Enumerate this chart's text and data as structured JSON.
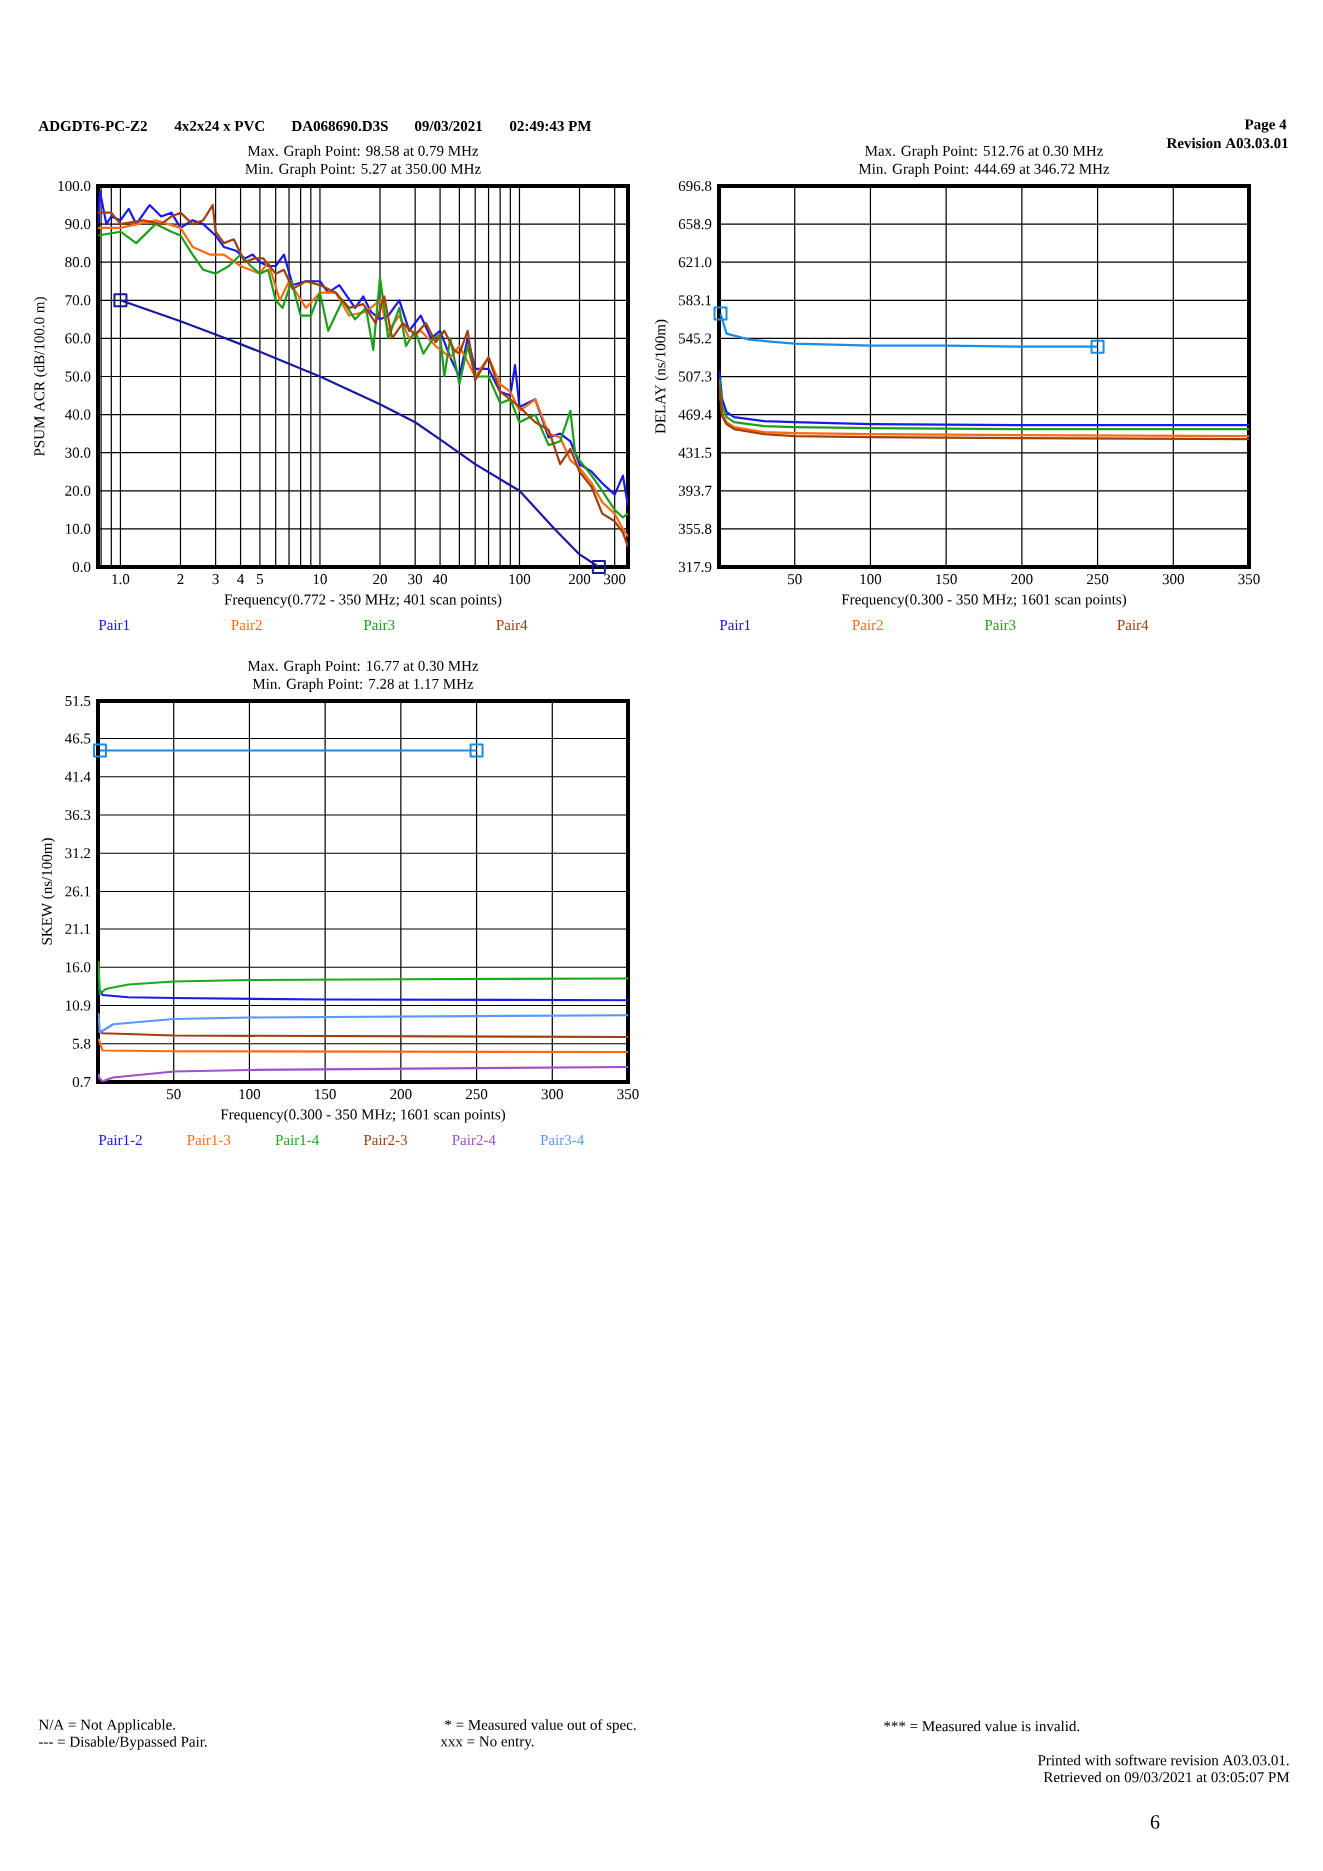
{
  "chart_data": [
    {
      "type": "line",
      "title": "Max. Graph Point: 98.58 at 0.79 MHz",
      "subtitle": "Min. Graph Point: 5.27 at 350.00 MHz",
      "xlabel": "Frequency(0.772 - 350 MHz; 401 scan points)",
      "ylabel": "PSUM ACR (dB/100.0 m)",
      "log": "x",
      "grid": true,
      "legend": "bottom",
      "xlim": [
        0.772,
        350
      ],
      "xticks": [
        {
          "value": 0.8,
          "label": null
        },
        {
          "value": 0.9,
          "label": null
        },
        {
          "value": 1,
          "label": "1.0"
        },
        2,
        3,
        4,
        5,
        {
          "value": 6,
          "label": null
        },
        {
          "value": 7,
          "label": null
        },
        {
          "value": 8,
          "label": null
        },
        {
          "value": 9,
          "label": null
        },
        10,
        20,
        30,
        40,
        {
          "value": 50,
          "label": null
        },
        {
          "value": 60,
          "label": null
        },
        {
          "value": 70,
          "label": null
        },
        {
          "value": 80,
          "label": null
        },
        {
          "value": 90,
          "label": null
        },
        100,
        200,
        300
      ],
      "ylim": [
        0,
        100
      ],
      "yticks": [
        {
          "value": 0,
          "label": "0.0"
        },
        {
          "value": 10,
          "label": "10.0"
        },
        {
          "value": 20,
          "label": "20.0"
        },
        {
          "value": 30,
          "label": "30.0"
        },
        {
          "value": 40,
          "label": "40.0"
        },
        {
          "value": 50,
          "label": "50.0"
        },
        {
          "value": 60,
          "label": "60.0"
        },
        {
          "value": 70,
          "label": "70.0"
        },
        {
          "value": 80,
          "label": "80.0"
        },
        {
          "value": 90,
          "label": "90.0"
        },
        {
          "value": 100,
          "label": "100.0"
        }
      ],
      "series": [
        {
          "name": "Pair1",
          "color": "#1a1af0",
          "x": [
            0.772,
            0.79,
            0.85,
            0.9,
            1.0,
            1.1,
            1.2,
            1.4,
            1.6,
            1.8,
            2.0,
            2.3,
            2.6,
            3.0,
            3.3,
            3.8,
            4.2,
            4.6,
            5.0,
            5.5,
            6.0,
            6.6,
            7.3,
            8.5,
            10,
            11,
            12.5,
            15,
            16.5,
            18,
            20,
            22,
            25,
            28,
            32,
            36,
            40,
            45,
            50,
            55,
            60,
            70,
            80,
            90,
            95,
            100,
            120,
            140,
            160,
            180,
            200,
            230,
            260,
            300,
            330,
            350
          ],
          "values": [
            90,
            98.5,
            90,
            92,
            91,
            94,
            90,
            95,
            92,
            93,
            89,
            91,
            90,
            87,
            84,
            83,
            81,
            82,
            80,
            79,
            79,
            82,
            74,
            75,
            75,
            72,
            74,
            68,
            71,
            67,
            65,
            66,
            70,
            62,
            66,
            60,
            62,
            55,
            50,
            60,
            52,
            52,
            46,
            45,
            53,
            42,
            44,
            34,
            35,
            33,
            27,
            25,
            22,
            19,
            24,
            16
          ]
        },
        {
          "name": "Pair2",
          "color": "#ff6a10",
          "x": [
            0.772,
            1.0,
            1.5,
            2.0,
            2.3,
            2.8,
            3.3,
            4.0,
            5.0,
            5.5,
            6.3,
            7.0,
            8.5,
            10,
            12,
            14,
            17,
            20,
            22,
            25,
            28,
            32,
            38,
            45,
            50,
            60,
            70,
            80,
            90,
            100,
            120,
            140,
            160,
            180,
            200,
            230,
            260,
            300,
            330,
            350
          ],
          "values": [
            89,
            89,
            91,
            89,
            84,
            82,
            82,
            79,
            77,
            80,
            70,
            75,
            68,
            72,
            72,
            66,
            67,
            70,
            62,
            66,
            60,
            62,
            58,
            55,
            58,
            50,
            55,
            48,
            46,
            41,
            44,
            35,
            34,
            28,
            26,
            22,
            17,
            14,
            10,
            8
          ]
        },
        {
          "name": "Pair3",
          "color": "#1aa01a",
          "x": [
            0.772,
            1.0,
            1.2,
            1.5,
            1.8,
            2.0,
            2.3,
            2.6,
            3.0,
            3.5,
            4.0,
            4.5,
            5.0,
            5.5,
            6.0,
            6.5,
            7.2,
            8.0,
            9.0,
            10,
            11,
            13,
            15,
            17,
            18.5,
            20,
            22,
            25,
            27,
            30,
            33,
            37,
            40,
            42,
            45,
            50,
            55,
            60,
            70,
            80,
            90,
            100,
            120,
            140,
            160,
            180,
            190,
            200,
            230,
            260,
            300,
            330,
            350
          ],
          "values": [
            87,
            88,
            85,
            90,
            88,
            87,
            82,
            78,
            77,
            79,
            82,
            79,
            77,
            78,
            70,
            68,
            75,
            66,
            66,
            72,
            62,
            70,
            65,
            68,
            57,
            76,
            60,
            68,
            58,
            62,
            56,
            60,
            61,
            50,
            60,
            48,
            58,
            50,
            50,
            43,
            44,
            38,
            40,
            32,
            33,
            41,
            30,
            28,
            24,
            20,
            15,
            13,
            14
          ]
        },
        {
          "name": "Pair4",
          "color": "#a0400a",
          "x": [
            0.772,
            0.9,
            1.0,
            1.3,
            1.6,
            1.8,
            2.0,
            2.3,
            2.6,
            2.9,
            3.0,
            3.3,
            3.7,
            4.2,
            4.7,
            5.2,
            6.0,
            6.6,
            7.3,
            8.5,
            10,
            12,
            14,
            16.5,
            19,
            21,
            23,
            26,
            30,
            34,
            38,
            42,
            47,
            50,
            55,
            60,
            70,
            80,
            90,
            100,
            120,
            140,
            160,
            180,
            200,
            230,
            260,
            300,
            330,
            350
          ],
          "values": [
            93,
            93,
            90,
            91,
            90,
            92,
            93,
            90,
            91,
            95,
            88,
            85,
            86,
            80,
            81,
            81,
            77,
            78,
            73,
            75,
            74,
            72,
            68,
            69,
            64,
            71,
            60,
            64,
            61,
            64,
            59,
            62,
            57,
            56,
            62,
            49,
            55,
            46,
            44,
            42,
            38,
            36,
            27,
            31,
            25,
            21,
            14,
            12,
            9,
            5.3
          ]
        },
        {
          "color": "#1a1aa0",
          "x": [
            1,
            2,
            3,
            4,
            5,
            10,
            20,
            30,
            40,
            60,
            100,
            150,
            200,
            250
          ],
          "values": [
            70,
            64.5,
            61,
            58.5,
            56.5,
            50,
            42.7,
            38,
            33.5,
            27,
            20,
            10,
            3.3,
            0
          ]
        },
        {
          "type": "scatter",
          "color": "#1a1aa0",
          "marker": "square",
          "x": [
            1,
            250
          ],
          "values": [
            70,
            0
          ]
        }
      ]
    },
    {
      "type": "line",
      "title": "Max. Graph Point: 512.76 at 0.30 MHz",
      "subtitle": "Min. Graph Point: 444.69 at 346.72 MHz",
      "xlabel": "Frequency(0.300 - 350 MHz; 1601 scan points)",
      "ylabel": "DELAY (ns/100m)",
      "grid": true,
      "legend": "bottom",
      "xlim": [
        0,
        350
      ],
      "xticks": [
        50,
        100,
        150,
        200,
        250,
        300,
        350
      ],
      "ylim": [
        317.9,
        696.8
      ],
      "yticks": [
        317.9,
        355.8,
        393.7,
        431.5,
        469.4,
        507.3,
        545.2,
        583.1,
        {
          "value": 621,
          "label": "621.0"
        },
        658.9,
        696.8
      ],
      "series": [
        {
          "name": "Pair1",
          "color": "#1a1af0",
          "x": [
            0.3,
            2,
            5,
            10,
            30,
            50,
            100,
            200,
            350
          ],
          "values": [
            513,
            485,
            472,
            467,
            463,
            462,
            460,
            459,
            459
          ]
        },
        {
          "name": "Pair2",
          "color": "#ff6a10",
          "x": [
            0.3,
            2,
            5,
            10,
            30,
            50,
            100,
            200,
            350
          ],
          "values": [
            500,
            470,
            462,
            457,
            452,
            451,
            450,
            449,
            448
          ]
        },
        {
          "name": "Pair3",
          "color": "#1aa01a",
          "x": [
            0.3,
            2,
            5,
            10,
            30,
            50,
            100,
            200,
            350
          ],
          "values": [
            505,
            478,
            467,
            462,
            458,
            457,
            456,
            455,
            455
          ]
        },
        {
          "name": "Pair4",
          "color": "#a0400a",
          "x": [
            0.3,
            2,
            5,
            10,
            30,
            50,
            100,
            200,
            350
          ],
          "values": [
            498,
            468,
            460,
            455,
            450,
            448,
            447,
            446,
            445
          ]
        },
        {
          "color": "#1a8ce6",
          "x": [
            1,
            5,
            20,
            50,
            100,
            150,
            200,
            250
          ],
          "values": [
            570,
            550,
            544,
            540,
            538,
            538,
            537,
            537
          ]
        },
        {
          "type": "scatter",
          "color": "#1a8ce6",
          "marker": "square",
          "x": [
            1,
            250
          ],
          "values": [
            570,
            537
          ]
        }
      ]
    },
    {
      "type": "line",
      "title": "Max. Graph Point: 16.77 at 0.30 MHz",
      "subtitle": "Min. Graph Point: 7.28 at 1.17 MHz",
      "xlabel": "Frequency(0.300 - 350 MHz; 1601 scan points)",
      "ylabel": "SKEW (ns/100m)",
      "grid": true,
      "legend": "bottom",
      "xlim": [
        0,
        350
      ],
      "xticks": [
        50,
        100,
        150,
        200,
        250,
        300,
        350
      ],
      "ylim": [
        0.7,
        51.5
      ],
      "yticks": [
        0.7,
        5.8,
        10.9,
        {
          "value": 16,
          "label": "16.0"
        },
        21.1,
        26.1,
        31.2,
        36.3,
        41.4,
        46.5,
        51.5
      ],
      "series": [
        {
          "name": "Pair1-2",
          "color": "#1a1ae6",
          "x": [
            0.3,
            3,
            20,
            50,
            150,
            350
          ],
          "values": [
            13.3,
            12.3,
            12.0,
            11.9,
            11.7,
            11.6
          ]
        },
        {
          "name": "Pair1-3",
          "color": "#ff6a10",
          "x": [
            0.3,
            3,
            50,
            350
          ],
          "values": [
            6.5,
            4.9,
            4.8,
            4.7
          ]
        },
        {
          "name": "Pair1-4",
          "color": "#1aaa1a",
          "x": [
            0.3,
            1.2,
            5,
            20,
            50,
            100,
            200,
            350
          ],
          "values": [
            16.8,
            12.4,
            13.1,
            13.7,
            14.1,
            14.3,
            14.4,
            14.5
          ]
        },
        {
          "name": "Pair2-3",
          "color": "#a0400a",
          "x": [
            0.3,
            3,
            50,
            350
          ],
          "values": [
            7.6,
            7.2,
            6.9,
            6.7
          ]
        },
        {
          "name": "Pair2-4",
          "color": "#a050c8",
          "x": [
            0.3,
            1,
            3,
            10,
            50,
            100,
            350
          ],
          "values": [
            1.8,
            1.2,
            0.8,
            1.3,
            2.1,
            2.3,
            2.7
          ]
        },
        {
          "name": "Pair3-4",
          "color": "#5a96ff",
          "x": [
            0.3,
            1.2,
            10,
            50,
            100,
            350
          ],
          "values": [
            9.9,
            7.3,
            8.4,
            9.1,
            9.3,
            9.6
          ]
        },
        {
          "color": "#1a8ce6",
          "marker": "square",
          "x": [
            1.3,
            250
          ],
          "values": [
            44.9,
            44.9
          ]
        }
      ]
    },
    {
      "type": "other",
      "annotations": [
        "ADGDT6-PC-Z2",
        "4x2x24 x PVC",
        "DA068690.D3S",
        "09/03/2021",
        "02:49:43 PM",
        "Page 4",
        "Revision A03.03.01",
        "N/A = Not Applicable.",
        "--- = Disable/Bypassed Pair.",
        "*  = Measured value out of spec.",
        "xxx = No entry.",
        "*** = Measured value is invalid.",
        "Printed with software revision A03.03.01.",
        "Retrieved on 09/03/2021 at 03:05:07 PM",
        "6"
      ]
    }
  ]
}
